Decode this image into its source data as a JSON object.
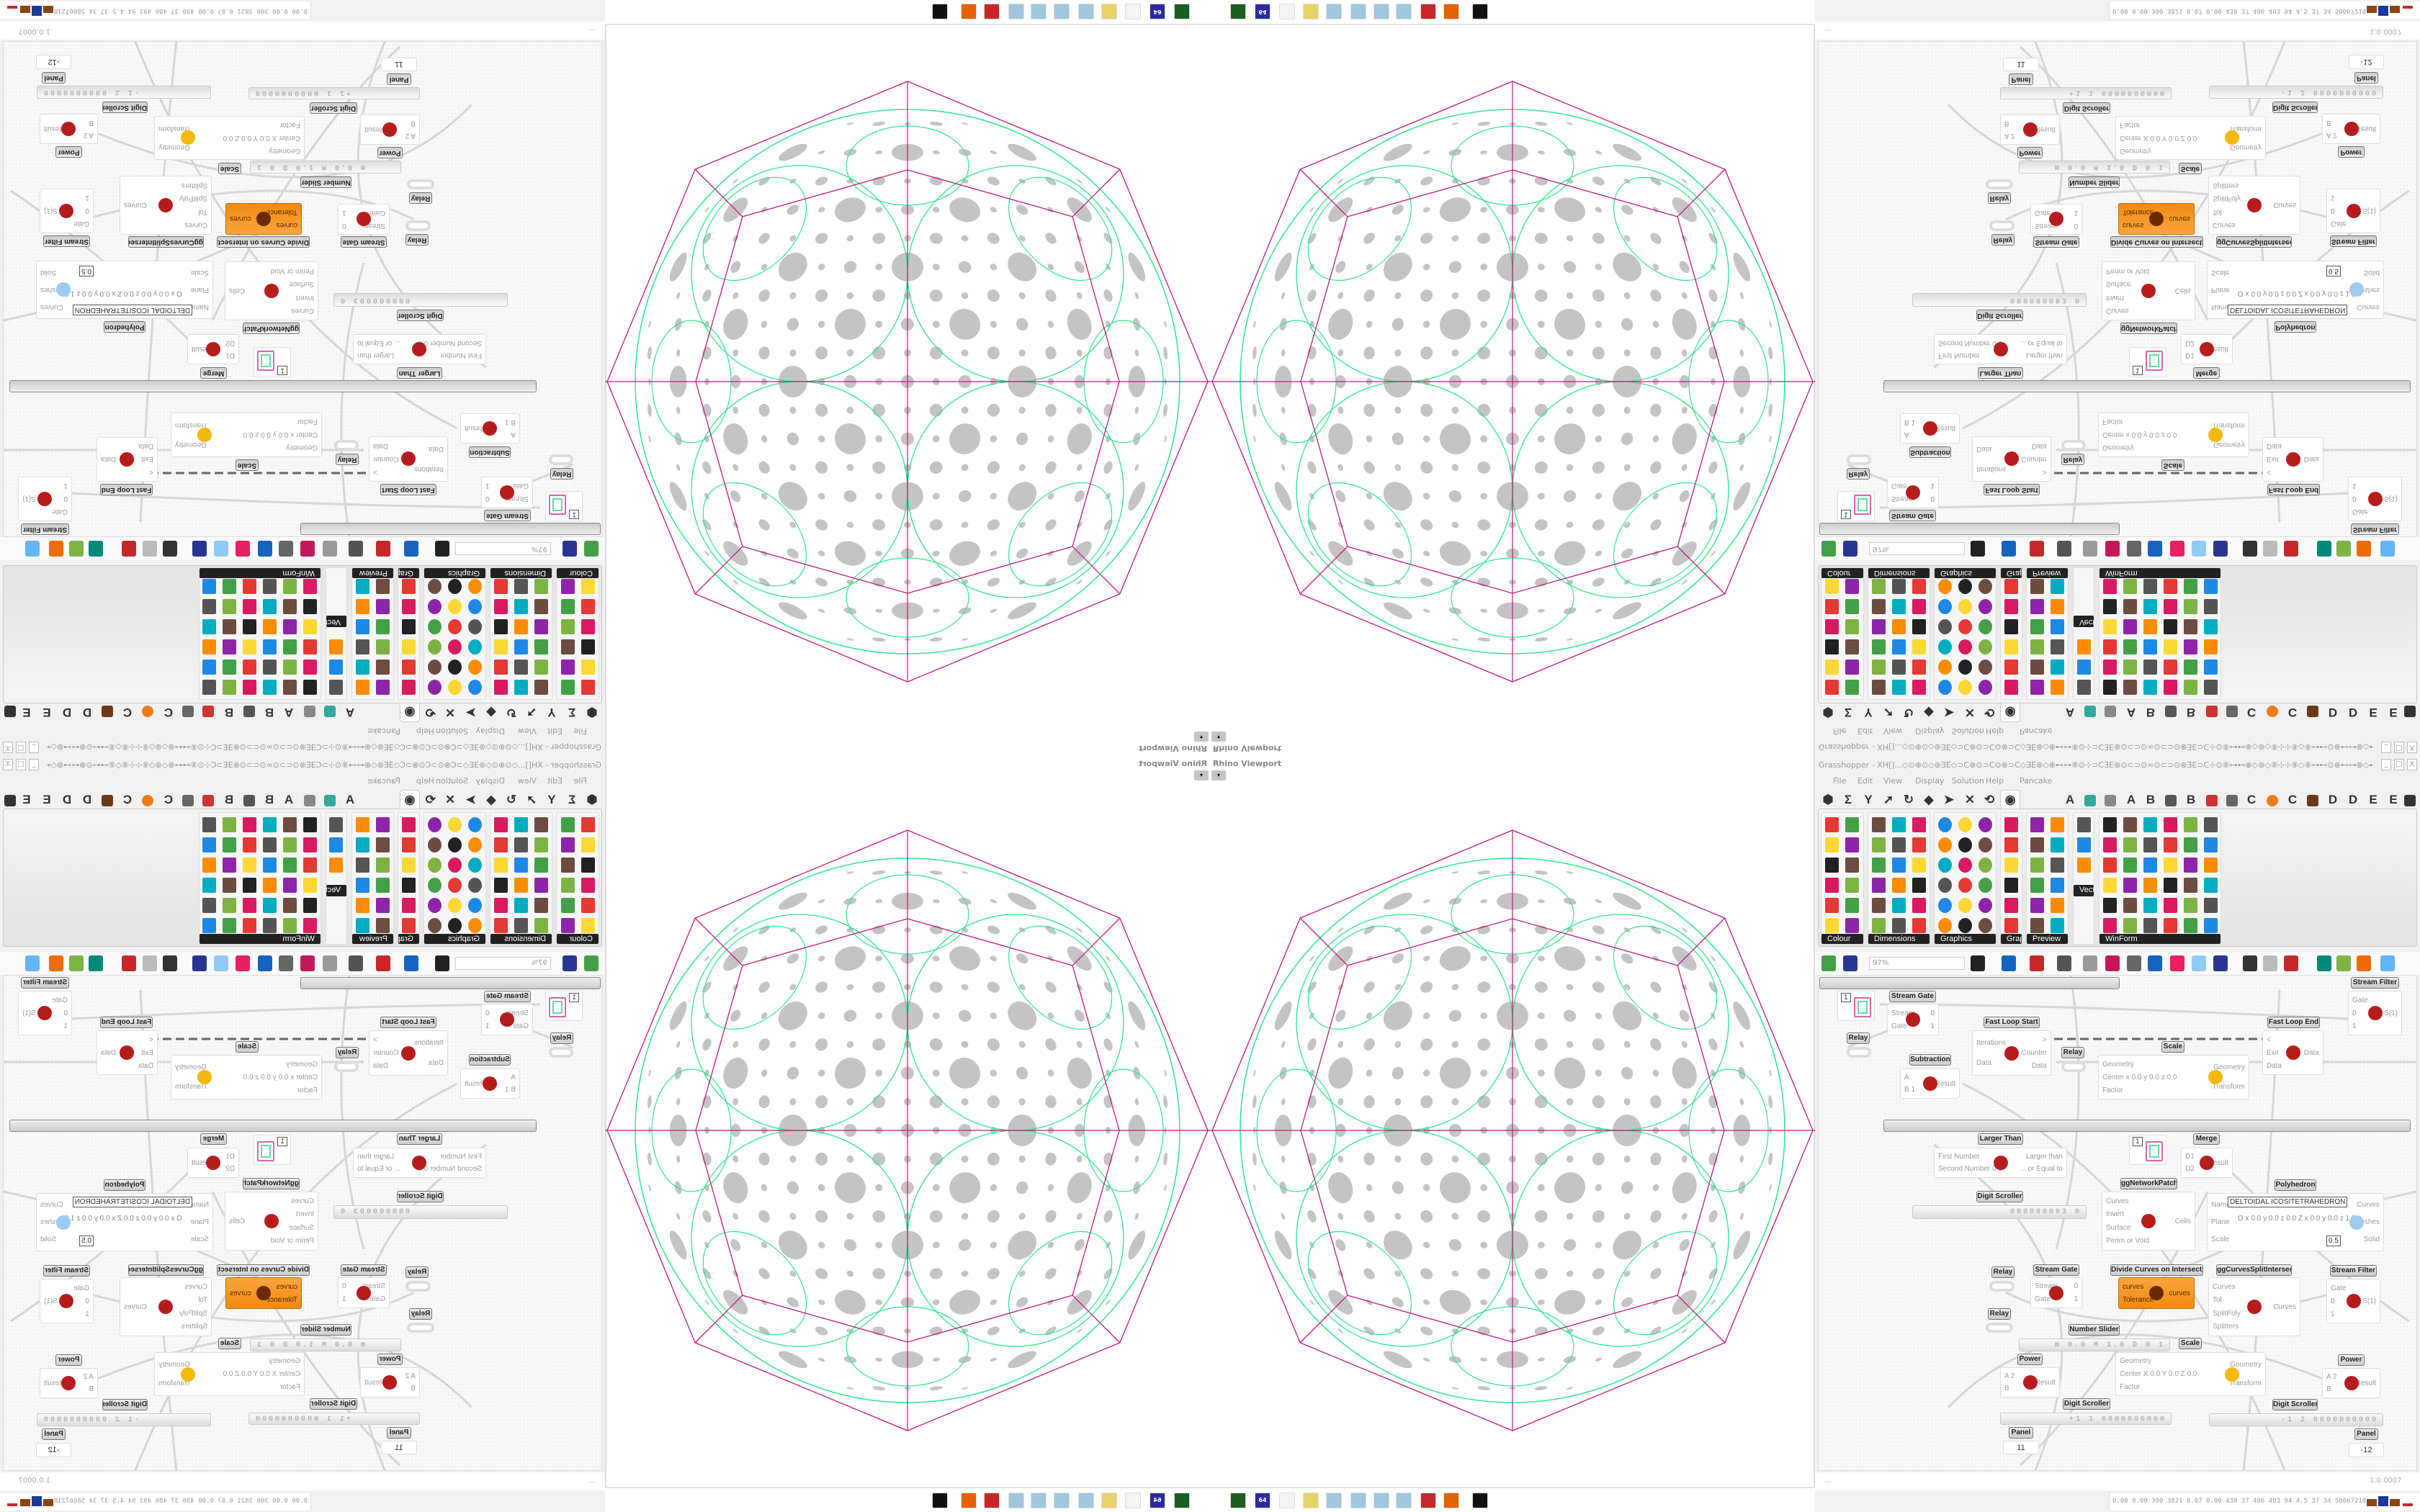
{
  "viewport": {
    "title": "Rhino Viewport",
    "menu_button": "▾"
  },
  "taskbar": {
    "icons": [
      {
        "name": "rhino-app-icon",
        "color": "#1b5e20",
        "text": ""
      },
      {
        "name": "rhino64-icon",
        "color": "#2a2aa0",
        "text": "64"
      },
      {
        "name": "blank-app-icon",
        "color": "#f4f4f4",
        "text": ""
      },
      {
        "name": "folder-icon",
        "color": "#e8d36a",
        "text": ""
      },
      {
        "name": "notepad-icon",
        "color": "#9fc7dd",
        "text": ""
      },
      {
        "name": "notepad-icon",
        "color": "#9fc7dd",
        "text": ""
      },
      {
        "name": "notepad-icon",
        "color": "#9fc7dd",
        "text": ""
      },
      {
        "name": "notepad-icon",
        "color": "#9fc7dd",
        "text": ""
      },
      {
        "name": "red-app-icon",
        "color": "#c62828",
        "text": ""
      },
      {
        "name": "firefox-icon",
        "color": "#e66000",
        "text": ""
      },
      {
        "name": "rhinoceros-icon",
        "color": "#111111",
        "text": ""
      }
    ]
  },
  "grasshopper": {
    "title": "Grasshopper - XH[]...◇⊙⊕⊙◇⊛ƎE◇⊃C⊗⊙⊃C⊙⊗⊃C◇ƎE⊛◇⊕⊷⊶⑧⊙⊹⊃CƎE⊗⊙⊂⊃⊙∞⊙⊂⊃⊙⊗ƎE⊃C⊹⊙⑧⊶⊷⊕◇⊛◇⑧⊹⊹⑧◇⑧⊶⊷⊙⊕⊷⊶⊛◇⊷⊶⑧⊙⊹⊃CƎE⊗⊙⊂⊃⊙...",
    "window_controls": [
      "_",
      "□",
      "X"
    ],
    "menu": [
      "File",
      "Edit",
      "View",
      "Display",
      "Solution",
      "Help",
      "Pancake"
    ],
    "tab_letters": [
      "A",
      "A",
      "B",
      "B",
      "C",
      "C",
      "D",
      "D",
      "E",
      "E"
    ],
    "palette_groups": [
      "Colour",
      "Dimensions",
      "Graphics",
      "Grap...",
      "Preview",
      "Vect...",
      "WinForm"
    ],
    "zoom": "97%",
    "canvas": {
      "nodes": [
        {
          "title": "Stream Gate",
          "inputs": [
            "Stream",
            "Gate"
          ],
          "outputs": [
            "0",
            "1"
          ]
        },
        {
          "title": "Stream Filter",
          "inputs": [
            "Gate",
            "0",
            "1"
          ],
          "outputs": [
            "S(1)"
          ]
        },
        {
          "title": "Relay"
        },
        {
          "title": "Fast Loop Start",
          "inputs": [
            "Iterations",
            "Data"
          ],
          "outputs": [
            ">",
            "Counter",
            "Data"
          ]
        },
        {
          "title": "Relay"
        },
        {
          "title": "Fast Loop End",
          "inputs": [
            "<",
            "Exit",
            "Data"
          ],
          "outputs": [
            "Data"
          ]
        },
        {
          "title": "Scale",
          "inputs": [
            "Geometry",
            "Center  x 0.0 y 0.0 z 0.0",
            "Factor"
          ],
          "outputs": [
            "Geometry",
            "Transform"
          ]
        },
        {
          "title": "Subtraction",
          "inputs": [
            "A",
            "B 1"
          ],
          "outputs": [
            "Result"
          ]
        },
        {
          "title": "Larger Than",
          "inputs": [
            "First Number",
            "Second Number 0.0"
          ],
          "outputs": [
            "Larger than",
            "... or Equal to"
          ]
        },
        {
          "title": "Merge",
          "inputs": [
            "D1",
            "D2"
          ],
          "outputs": [
            "Result"
          ]
        },
        {
          "title": "ggNetworkPatch",
          "inputs": [
            "Curves",
            "Invert",
            "Surface",
            "Perim or Void"
          ],
          "outputs": [
            "Cells"
          ]
        },
        {
          "title": "Polyhedron",
          "inputs": [
            "Name",
            "Plane",
            "Scale"
          ],
          "outputs": [
            "Curves",
            "Meshes",
            "Solid"
          ],
          "name_value": "DELTOIDAL ICOSITETRAHEDRON",
          "plane_values": "O x 0.0 y 0.0 z 0.0   Z x 0.0 y 0.0 z 1.0",
          "scale_value": "0.5"
        },
        {
          "title": "Digit Scroller",
          "value": "000000003 0"
        },
        {
          "title": "Relay"
        },
        {
          "title": "Relay"
        },
        {
          "title": "Stream Gate",
          "inputs": [
            "Stream",
            "Gate"
          ],
          "outputs": [
            "0",
            "1"
          ]
        },
        {
          "title": "Divide Curves on Intersects",
          "inputs": [
            "curves",
            "Tolerance"
          ],
          "outputs": [
            "curves"
          ]
        },
        {
          "title": "ggCurvesSplitIntersect",
          "inputs": [
            "Curves",
            "Tol",
            "SplitPoly",
            "Splitters"
          ],
          "outputs": [
            "Curves"
          ]
        },
        {
          "title": "Stream Filter",
          "inputs": [
            "Gate",
            "0",
            "1"
          ],
          "outputs": [
            "S(1)"
          ]
        },
        {
          "title": "Number Slider",
          "value": "m 0.0 M 1.0 D 0    1"
        },
        {
          "title": "Scale",
          "inputs": [
            "Geometry",
            "Center X 0.0 Y 0.0 Z 0.0",
            "Factor"
          ],
          "outputs": [
            "Geometry",
            "Transform"
          ]
        },
        {
          "title": "Power",
          "inputs": [
            "A 2",
            "B"
          ],
          "outputs": [
            "Result"
          ]
        },
        {
          "title": "Power",
          "inputs": [
            "A 2",
            "B"
          ],
          "outputs": [
            "Result"
          ]
        },
        {
          "title": "Digit Scroller",
          "value": "+1 1 0000000000"
        },
        {
          "title": "Digit Scroller",
          "value": "-1 2 0000000000"
        },
        {
          "title": "Panel",
          "value": "11"
        },
        {
          "title": "Panel",
          "value": "-12"
        }
      ],
      "circle_panels": [
        "1",
        "1"
      ]
    },
    "status_left": "...",
    "status_right": "1.0.0007",
    "perf": "0.00 0.00 300 3821 0.07 0.00 430  37  486  493  94  4.5  37  34  58667218"
  },
  "colors": {
    "orange_component": "#f39220",
    "wire_magenta": "#c2187e",
    "curve_green": "#2ee88a",
    "dot_gray": "#c4c4c4"
  }
}
